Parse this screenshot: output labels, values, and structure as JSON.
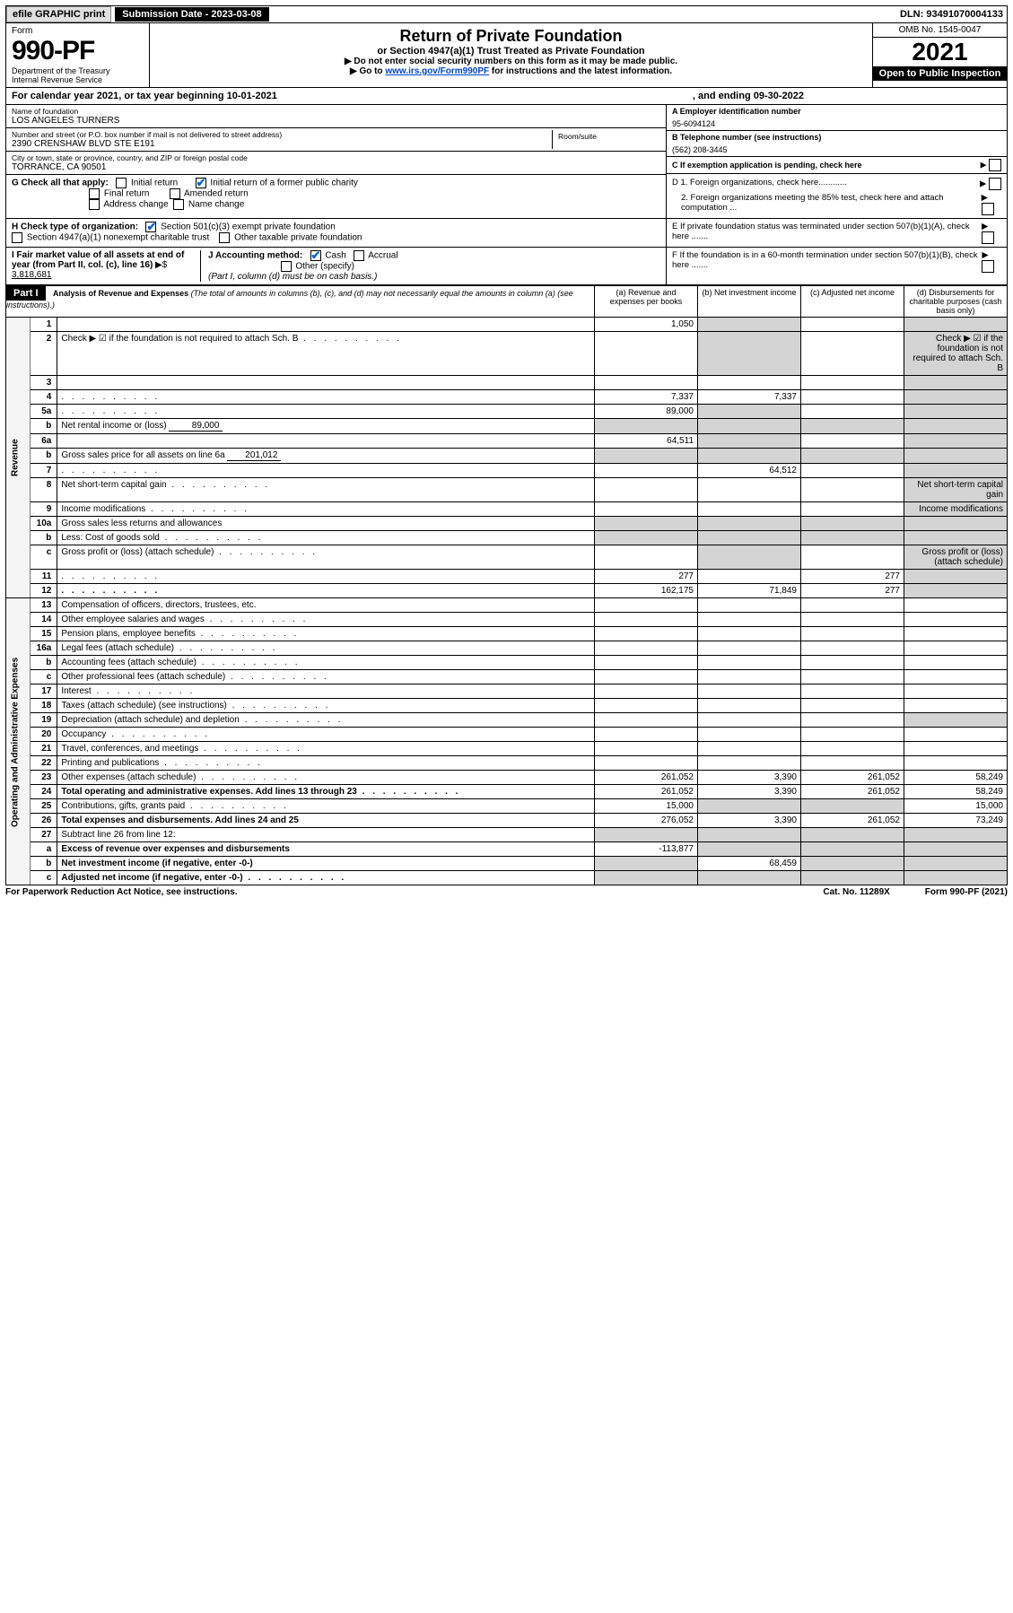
{
  "topbar": {
    "efile": "efile GRAPHIC print",
    "sub_date_lbl": "Submission Date - ",
    "sub_date": "2023-03-08",
    "dln_lbl": "DLN: ",
    "dln": "93491070004133"
  },
  "header": {
    "form_word": "Form",
    "form_num": "990-PF",
    "dept1": "Department of the Treasury",
    "dept2": "Internal Revenue Service",
    "title": "Return of Private Foundation",
    "subtitle": "or Section 4947(a)(1) Trust Treated as Private Foundation",
    "note1": "▶ Do not enter social security numbers on this form as it may be made public.",
    "note2_pre": "▶ Go to ",
    "note2_link": "www.irs.gov/Form990PF",
    "note2_post": " for instructions and the latest information.",
    "omb": "OMB No. 1545-0047",
    "year": "2021",
    "open": "Open to Public Inspection"
  },
  "calendar": {
    "text": "For calendar year 2021, or tax year beginning 10-01-2021",
    "ending": ", and ending 09-30-2022"
  },
  "entity": {
    "name_lbl": "Name of foundation",
    "name": "LOS ANGELES TURNERS",
    "addr_lbl": "Number and street (or P.O. box number if mail is not delivered to street address)",
    "addr": "2390 CRENSHAW BLVD STE E191",
    "room_lbl": "Room/suite",
    "city_lbl": "City or town, state or province, country, and ZIP or foreign postal code",
    "city": "TORRANCE, CA  90501",
    "a_lbl": "A Employer identification number",
    "a_val": "95-6094124",
    "b_lbl": "B Telephone number (see instructions)",
    "b_val": "(562) 208-3445",
    "c_lbl": "C If exemption application is pending, check here",
    "g_lbl": "G Check all that apply:",
    "g_opts": [
      "Initial return",
      "Final return",
      "Address change",
      "Initial return of a former public charity",
      "Amended return",
      "Name change"
    ],
    "d1": "D 1. Foreign organizations, check here............",
    "d2": "2. Foreign organizations meeting the 85% test, check here and attach computation ...",
    "h_lbl": "H Check type of organization:",
    "h1": "Section 501(c)(3) exempt private foundation",
    "h2": "Section 4947(a)(1) nonexempt charitable trust",
    "h3": "Other taxable private foundation",
    "e_lbl": "E  If private foundation status was terminated under section 507(b)(1)(A), check here .......",
    "i_lbl": "I Fair market value of all assets at end of year (from Part II, col. (c), line 16)",
    "i_val": "3,818,681",
    "j_lbl": "J Accounting method:",
    "j_cash": "Cash",
    "j_accrual": "Accrual",
    "j_other": "Other (specify)",
    "j_note": "(Part I, column (d) must be on cash basis.)",
    "f_lbl": "F  If the foundation is in a 60-month termination under section 507(b)(1)(B), check here ......."
  },
  "part1": {
    "label": "Part I",
    "title": "Analysis of Revenue and Expenses",
    "title_note": "(The total of amounts in columns (b), (c), and (d) may not necessarily equal the amounts in column (a) (see instructions).)",
    "col_a": "(a)   Revenue and expenses per books",
    "col_b": "(b)   Net investment income",
    "col_c": "(c)   Adjusted net income",
    "col_d": "(d)   Disbursements for charitable purposes (cash basis only)",
    "side_rev": "Revenue",
    "side_exp": "Operating and Administrative Expenses"
  },
  "rows": [
    {
      "n": "1",
      "d": "",
      "a": "1,050",
      "b": "",
      "c": ""
    },
    {
      "n": "2",
      "d": "Check ▶ ☑ if the foundation is not required to attach Sch. B",
      "dots": true
    },
    {
      "n": "3",
      "d": "",
      "a": "",
      "b": "",
      "c": ""
    },
    {
      "n": "4",
      "d": "",
      "dots": true,
      "a": "7,337",
      "b": "7,337",
      "c": ""
    },
    {
      "n": "5a",
      "d": "",
      "dots": true,
      "a": "89,000",
      "b": "",
      "c": ""
    },
    {
      "n": "b",
      "d": "Net rental income or (loss)",
      "inline": "89,000"
    },
    {
      "n": "6a",
      "d": "",
      "a": "64,511",
      "b": "",
      "c": ""
    },
    {
      "n": "b",
      "d": "Gross sales price for all assets on line 6a",
      "inline": "201,012"
    },
    {
      "n": "7",
      "d": "",
      "dots": true,
      "a": "",
      "b": "64,512",
      "c": ""
    },
    {
      "n": "8",
      "d": "Net short-term capital gain",
      "dots": true
    },
    {
      "n": "9",
      "d": "Income modifications",
      "dots": true
    },
    {
      "n": "10a",
      "d": "Gross sales less returns and allowances",
      "box": true
    },
    {
      "n": "b",
      "d": "Less: Cost of goods sold",
      "dots": true,
      "box": true
    },
    {
      "n": "c",
      "d": "Gross profit or (loss) (attach schedule)",
      "dots": true
    },
    {
      "n": "11",
      "d": "",
      "dots": true,
      "a": "277",
      "b": "",
      "c": "277"
    },
    {
      "n": "12",
      "d": "",
      "dots": true,
      "bold": true,
      "a": "162,175",
      "b": "71,849",
      "c": "277"
    }
  ],
  "exp_rows": [
    {
      "n": "13",
      "d": "Compensation of officers, directors, trustees, etc."
    },
    {
      "n": "14",
      "d": "Other employee salaries and wages",
      "dots": true
    },
    {
      "n": "15",
      "d": "Pension plans, employee benefits",
      "dots": true
    },
    {
      "n": "16a",
      "d": "Legal fees (attach schedule)",
      "dots": true
    },
    {
      "n": "b",
      "d": "Accounting fees (attach schedule)",
      "dots": true
    },
    {
      "n": "c",
      "d": "Other professional fees (attach schedule)",
      "dots": true
    },
    {
      "n": "17",
      "d": "Interest",
      "dots": true
    },
    {
      "n": "18",
      "d": "Taxes (attach schedule) (see instructions)",
      "dots": true
    },
    {
      "n": "19",
      "d": "Depreciation (attach schedule) and depletion",
      "dots": true
    },
    {
      "n": "20",
      "d": "Occupancy",
      "dots": true
    },
    {
      "n": "21",
      "d": "Travel, conferences, and meetings",
      "dots": true
    },
    {
      "n": "22",
      "d": "Printing and publications",
      "dots": true
    },
    {
      "n": "23",
      "d": "Other expenses (attach schedule)",
      "dots": true,
      "a": "261,052",
      "b": "3,390",
      "c": "261,052",
      "dd": "58,249"
    },
    {
      "n": "24",
      "d": "Total operating and administrative expenses. Add lines 13 through 23",
      "dots": true,
      "bold": true,
      "a": "261,052",
      "b": "3,390",
      "c": "261,052",
      "dd": "58,249"
    },
    {
      "n": "25",
      "d": "Contributions, gifts, grants paid",
      "dots": true,
      "a": "15,000",
      "b": "",
      "c": "",
      "dd": "15,000"
    },
    {
      "n": "26",
      "d": "Total expenses and disbursements. Add lines 24 and 25",
      "bold": true,
      "a": "276,052",
      "b": "3,390",
      "c": "261,052",
      "dd": "73,249"
    },
    {
      "n": "27",
      "d": "Subtract line 26 from line 12:"
    },
    {
      "n": "a",
      "d": "Excess of revenue over expenses and disbursements",
      "bold": true,
      "a": "-113,877"
    },
    {
      "n": "b",
      "d": "Net investment income (if negative, enter -0-)",
      "bold": true,
      "b": "68,459"
    },
    {
      "n": "c",
      "d": "Adjusted net income (if negative, enter -0-)",
      "bold": true,
      "dots": true
    }
  ],
  "footer": {
    "left": "For Paperwork Reduction Act Notice, see instructions.",
    "mid": "Cat. No. 11289X",
    "right": "Form 990-PF (2021)"
  }
}
